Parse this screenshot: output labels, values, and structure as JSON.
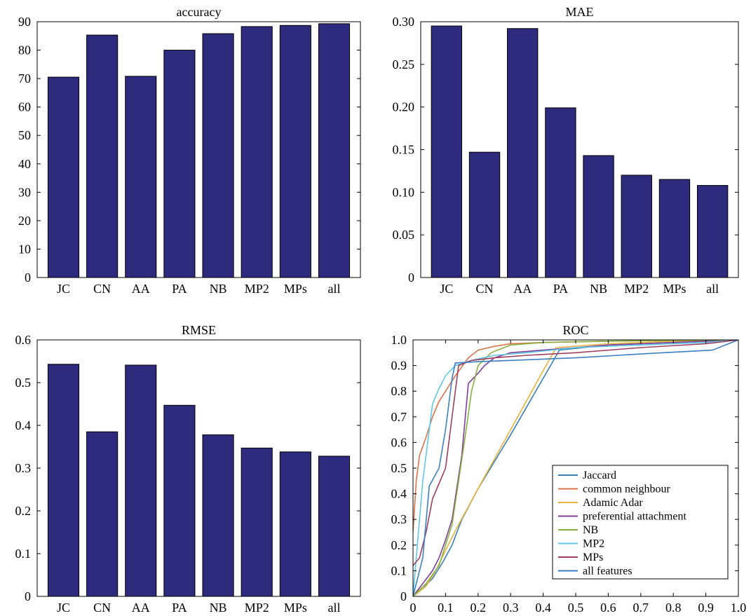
{
  "chart_data": [
    {
      "type": "bar",
      "title": "accuracy",
      "categories": [
        "JC",
        "CN",
        "AA",
        "PA",
        "NB",
        "MP2",
        "MPs",
        "all"
      ],
      "values": [
        70.5,
        85.3,
        70.8,
        80.0,
        85.8,
        88.3,
        88.7,
        89.3
      ],
      "ylim": [
        0,
        90
      ],
      "yticks": [
        0,
        10,
        20,
        30,
        40,
        50,
        60,
        70,
        80,
        90
      ],
      "ytick_labels": [
        "0",
        "10",
        "20",
        "30",
        "40",
        "50",
        "60",
        "70",
        "80",
        "90"
      ],
      "bar_color": "#2e2a7d",
      "grid": false
    },
    {
      "type": "bar",
      "title": "MAE",
      "categories": [
        "JC",
        "CN",
        "AA",
        "PA",
        "NB",
        "MP2",
        "MPs",
        "all"
      ],
      "values": [
        0.295,
        0.147,
        0.292,
        0.199,
        0.143,
        0.12,
        0.115,
        0.108
      ],
      "ylim": [
        0,
        0.3
      ],
      "yticks": [
        0,
        0.05,
        0.1,
        0.15,
        0.2,
        0.25,
        0.3
      ],
      "ytick_labels": [
        "0",
        "0.05",
        "0.10",
        "0.15",
        "0.20",
        "0.25",
        "0.30"
      ],
      "bar_color": "#2e2a7d",
      "grid": false
    },
    {
      "type": "bar",
      "title": "RMSE",
      "categories": [
        "JC",
        "CN",
        "AA",
        "PA",
        "NB",
        "MP2",
        "MPs",
        "all"
      ],
      "values": [
        0.543,
        0.385,
        0.541,
        0.447,
        0.378,
        0.347,
        0.338,
        0.328
      ],
      "ylim": [
        0,
        0.6
      ],
      "yticks": [
        0,
        0.1,
        0.2,
        0.3,
        0.4,
        0.5,
        0.6
      ],
      "ytick_labels": [
        "0",
        "0.1",
        "0.2",
        "0.3",
        "0.4",
        "0.5",
        "0.6"
      ],
      "bar_color": "#2e2a7d",
      "grid": false
    },
    {
      "type": "line",
      "title": "ROC",
      "xlim": [
        0,
        1
      ],
      "ylim": [
        0,
        1
      ],
      "xticks": [
        0,
        0.1,
        0.2,
        0.3,
        0.4,
        0.5,
        0.6,
        0.7,
        0.8,
        0.9,
        1.0
      ],
      "xtick_labels": [
        "0",
        "0.1",
        "0.2",
        "0.3",
        "0.4",
        "0.5",
        "0.6",
        "0.7",
        "0.8",
        "0.9",
        "1.0"
      ],
      "yticks": [
        0,
        0.1,
        0.2,
        0.3,
        0.4,
        0.5,
        0.6,
        0.7,
        0.8,
        0.9,
        1.0
      ],
      "ytick_labels": [
        "0",
        "0.1",
        "0.2",
        "0.3",
        "0.4",
        "0.5",
        "0.6",
        "0.7",
        "0.8",
        "0.9",
        "1.0"
      ],
      "grid": false,
      "legend_position": "bottom-right",
      "series": [
        {
          "name": "Jaccard",
          "color": "#3a7fb5",
          "x": [
            0,
            0.03,
            0.06,
            0.09,
            0.12,
            0.15,
            0.2,
            0.3,
            0.4,
            0.45,
            0.6,
            0.8,
            1.0
          ],
          "y": [
            0,
            0.03,
            0.07,
            0.13,
            0.2,
            0.3,
            0.42,
            0.63,
            0.85,
            0.96,
            0.98,
            0.99,
            1.0
          ]
        },
        {
          "name": "common neighbour",
          "color": "#d9734a",
          "x": [
            0,
            0.01,
            0.02,
            0.04,
            0.06,
            0.08,
            0.1,
            0.13,
            0.17,
            0.2,
            0.25,
            0.3,
            0.4,
            0.6,
            0.8,
            1.0
          ],
          "y": [
            0.25,
            0.45,
            0.55,
            0.62,
            0.7,
            0.76,
            0.8,
            0.86,
            0.93,
            0.96,
            0.975,
            0.985,
            0.99,
            0.995,
            0.998,
            1.0
          ]
        },
        {
          "name": "Adamic Adar",
          "color": "#e8b33c",
          "x": [
            0,
            0.04,
            0.07,
            0.1,
            0.14,
            0.2,
            0.3,
            0.4,
            0.44,
            0.6,
            0.8,
            1.0
          ],
          "y": [
            0,
            0.04,
            0.1,
            0.18,
            0.28,
            0.42,
            0.65,
            0.88,
            0.97,
            0.985,
            0.995,
            1.0
          ]
        },
        {
          "name": "preferential attachment",
          "color": "#7e3d99",
          "x": [
            0,
            0.03,
            0.06,
            0.08,
            0.1,
            0.12,
            0.15,
            0.17,
            0.2,
            0.22,
            0.25,
            0.3,
            0.4,
            0.5,
            0.6,
            0.8,
            1.0
          ],
          "y": [
            0,
            0.05,
            0.1,
            0.15,
            0.22,
            0.3,
            0.55,
            0.83,
            0.87,
            0.9,
            0.93,
            0.95,
            0.96,
            0.97,
            0.98,
            0.99,
            1.0
          ]
        },
        {
          "name": "NB",
          "color": "#88b03e",
          "x": [
            0,
            0.04,
            0.08,
            0.1,
            0.12,
            0.14,
            0.16,
            0.18,
            0.2,
            0.24,
            0.3,
            0.4,
            0.6,
            0.8,
            1.0
          ],
          "y": [
            0,
            0.05,
            0.12,
            0.2,
            0.28,
            0.45,
            0.62,
            0.8,
            0.9,
            0.95,
            0.98,
            0.99,
            0.995,
            0.998,
            1.0
          ]
        },
        {
          "name": "MP2",
          "color": "#5fc8e6",
          "x": [
            0,
            0.02,
            0.03,
            0.04,
            0.05,
            0.06,
            0.08,
            0.1,
            0.13,
            0.18,
            0.25,
            0.35,
            0.5,
            0.7,
            0.9,
            1.0
          ],
          "y": [
            0,
            0.3,
            0.45,
            0.55,
            0.65,
            0.75,
            0.81,
            0.86,
            0.9,
            0.92,
            0.94,
            0.95,
            0.97,
            0.98,
            0.99,
            1.0
          ]
        },
        {
          "name": "MPs",
          "color": "#9e3f5e",
          "x": [
            0,
            0.02,
            0.04,
            0.06,
            0.08,
            0.1,
            0.12,
            0.14,
            0.16,
            0.18,
            0.25,
            0.35,
            0.5,
            0.7,
            0.9,
            1.0
          ],
          "y": [
            0.12,
            0.15,
            0.25,
            0.38,
            0.44,
            0.5,
            0.7,
            0.9,
            0.91,
            0.92,
            0.93,
            0.94,
            0.95,
            0.97,
            0.985,
            1.0
          ]
        },
        {
          "name": "all features",
          "color": "#3b7fc4",
          "x": [
            0,
            0.03,
            0.05,
            0.08,
            0.1,
            0.12,
            0.13,
            0.2,
            0.3,
            0.5,
            0.7,
            0.92,
            1.0
          ],
          "y": [
            0,
            0.15,
            0.43,
            0.5,
            0.65,
            0.85,
            0.91,
            0.915,
            0.92,
            0.93,
            0.945,
            0.96,
            1.0
          ]
        }
      ]
    }
  ]
}
